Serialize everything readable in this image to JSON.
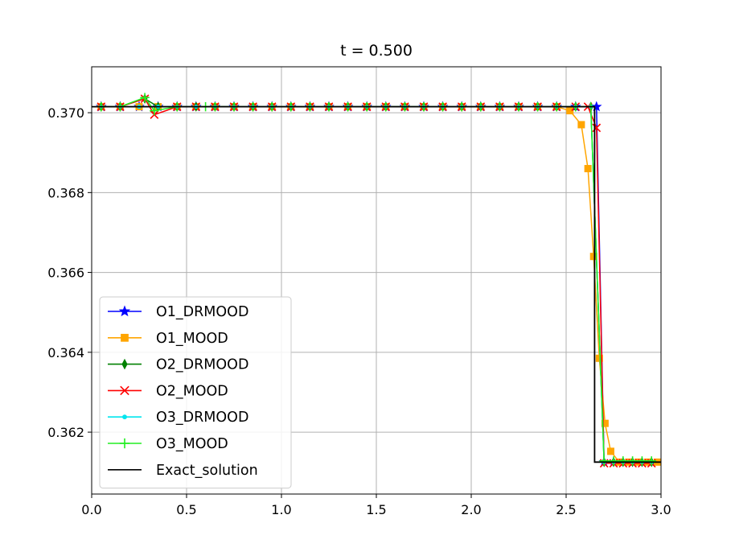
{
  "chart_data": {
    "type": "line",
    "title": "t = 0.500",
    "xlabel": "",
    "ylabel": "",
    "xlim": [
      0.0,
      3.0
    ],
    "ylim": [
      0.36045,
      0.37115
    ],
    "xticks": [
      "0.0",
      "0.5",
      "1.0",
      "1.5",
      "2.0",
      "2.5",
      "3.0"
    ],
    "yticks": [
      "0.362",
      "0.364",
      "0.366",
      "0.368",
      "0.370"
    ],
    "grid": true,
    "legend_position": "lower left",
    "shock_x": 2.65,
    "left_state": 0.37015,
    "right_state": 0.36125,
    "series": [
      {
        "name": "O1_DRMOOD",
        "color": "#0000ff",
        "marker": "star",
        "x": [
          0.05,
          0.15,
          0.25,
          0.35,
          0.45,
          0.55,
          0.65,
          0.75,
          0.85,
          0.95,
          1.05,
          1.15,
          1.25,
          1.35,
          1.45,
          1.55,
          1.65,
          1.75,
          1.85,
          1.95,
          2.05,
          2.15,
          2.25,
          2.35,
          2.45,
          2.55,
          2.66,
          2.7,
          2.75,
          2.8,
          2.85,
          2.9,
          2.95
        ],
        "y": [
          0.37015,
          0.37015,
          0.37015,
          0.37015,
          0.37015,
          0.37015,
          0.37015,
          0.37015,
          0.37015,
          0.37015,
          0.37015,
          0.37015,
          0.37015,
          0.37015,
          0.37015,
          0.37015,
          0.37015,
          0.37015,
          0.37015,
          0.37015,
          0.37015,
          0.37015,
          0.37015,
          0.37015,
          0.37015,
          0.37015,
          0.37015,
          0.36125,
          0.36125,
          0.36125,
          0.36125,
          0.36125,
          0.36125
        ]
      },
      {
        "name": "O1_MOOD",
        "color": "#ffa500",
        "marker": "square",
        "x": [
          0.05,
          0.15,
          0.25,
          0.35,
          0.45,
          0.55,
          0.65,
          0.75,
          0.85,
          0.95,
          1.05,
          1.15,
          1.25,
          1.35,
          1.45,
          1.55,
          1.65,
          1.75,
          1.85,
          1.95,
          2.05,
          2.15,
          2.25,
          2.35,
          2.45,
          2.52,
          2.58,
          2.615,
          2.645,
          2.675,
          2.705,
          2.735,
          2.78,
          2.83,
          2.88,
          2.93,
          2.98
        ],
        "y": [
          0.37015,
          0.37015,
          0.37015,
          0.37015,
          0.37015,
          0.37015,
          0.37015,
          0.37015,
          0.37015,
          0.37015,
          0.37015,
          0.37015,
          0.37015,
          0.37015,
          0.37015,
          0.37015,
          0.37015,
          0.37015,
          0.37015,
          0.37015,
          0.37015,
          0.37015,
          0.37015,
          0.37015,
          0.37015,
          0.37005,
          0.3697,
          0.3686,
          0.3664,
          0.36385,
          0.36222,
          0.36152,
          0.36125,
          0.36125,
          0.36125,
          0.36125,
          0.36125
        ]
      },
      {
        "name": "O2_DRMOOD",
        "color": "#008000",
        "marker": "thin_diamond",
        "x": [
          0.05,
          0.15,
          0.28,
          0.35,
          0.45,
          0.55,
          0.65,
          0.75,
          0.85,
          0.95,
          1.05,
          1.15,
          1.25,
          1.35,
          1.45,
          1.55,
          1.65,
          1.75,
          1.85,
          1.95,
          2.05,
          2.15,
          2.25,
          2.35,
          2.45,
          2.55,
          2.63,
          2.7,
          2.75,
          2.8,
          2.85,
          2.9,
          2.95
        ],
        "y": [
          0.37015,
          0.37015,
          0.37035,
          0.37015,
          0.37015,
          0.37015,
          0.37015,
          0.37015,
          0.37015,
          0.37015,
          0.37015,
          0.37015,
          0.37015,
          0.37015,
          0.37015,
          0.37015,
          0.37015,
          0.37015,
          0.37015,
          0.37015,
          0.37015,
          0.37015,
          0.37015,
          0.37015,
          0.37015,
          0.37015,
          0.37015,
          0.36125,
          0.36125,
          0.36125,
          0.36125,
          0.36125,
          0.36125
        ]
      },
      {
        "name": "O2_MOOD",
        "color": "#ff0000",
        "marker": "x",
        "x": [
          0.05,
          0.15,
          0.28,
          0.33,
          0.45,
          0.55,
          0.65,
          0.75,
          0.85,
          0.95,
          1.05,
          1.15,
          1.25,
          1.35,
          1.45,
          1.55,
          1.65,
          1.75,
          1.85,
          1.95,
          2.05,
          2.15,
          2.25,
          2.35,
          2.45,
          2.55,
          2.615,
          2.66,
          2.7,
          2.75,
          2.8,
          2.85,
          2.9,
          2.95
        ],
        "y": [
          0.37015,
          0.37015,
          0.37035,
          0.36995,
          0.37015,
          0.37015,
          0.37015,
          0.37015,
          0.37015,
          0.37015,
          0.37015,
          0.37015,
          0.37015,
          0.37015,
          0.37015,
          0.37015,
          0.37015,
          0.37015,
          0.37015,
          0.37015,
          0.37015,
          0.37015,
          0.37015,
          0.37015,
          0.37015,
          0.37015,
          0.37015,
          0.36962,
          0.36122,
          0.36122,
          0.36122,
          0.36122,
          0.36122,
          0.36122
        ]
      },
      {
        "name": "O3_DRMOOD",
        "color": "#00e5ee",
        "marker": "point",
        "x": [
          0.05,
          0.15,
          0.25,
          0.35,
          0.45,
          0.55,
          0.65,
          0.75,
          0.85,
          0.95,
          1.05,
          1.15,
          1.25,
          1.35,
          1.45,
          1.55,
          1.65,
          1.75,
          1.85,
          1.95,
          2.05,
          2.15,
          2.25,
          2.35,
          2.45,
          2.55,
          2.63,
          2.7,
          2.75,
          2.8,
          2.85,
          2.9,
          2.95
        ],
        "y": [
          0.37015,
          0.37015,
          0.37015,
          0.37015,
          0.37015,
          0.37015,
          0.37015,
          0.37015,
          0.37015,
          0.37015,
          0.37015,
          0.37015,
          0.37015,
          0.37015,
          0.37015,
          0.37015,
          0.37015,
          0.37015,
          0.37015,
          0.37015,
          0.37015,
          0.37015,
          0.37015,
          0.37015,
          0.37015,
          0.37015,
          0.37015,
          0.36125,
          0.36125,
          0.36125,
          0.36125,
          0.36125,
          0.36125
        ]
      },
      {
        "name": "O3_MOOD",
        "color": "#22ee22",
        "marker": "plus",
        "x": [
          0.05,
          0.15,
          0.28,
          0.33,
          0.45,
          0.6,
          0.65,
          0.75,
          0.85,
          0.95,
          1.05,
          1.15,
          1.25,
          1.35,
          1.45,
          1.55,
          1.65,
          1.75,
          1.85,
          1.95,
          2.05,
          2.15,
          2.25,
          2.35,
          2.45,
          2.55,
          2.63,
          2.7,
          2.75,
          2.8,
          2.85,
          2.9,
          2.95
        ],
        "y": [
          0.37015,
          0.37015,
          0.37038,
          0.37005,
          0.37015,
          0.37015,
          0.37015,
          0.37015,
          0.37015,
          0.37015,
          0.37015,
          0.37015,
          0.37015,
          0.37015,
          0.37015,
          0.37015,
          0.37015,
          0.37015,
          0.37015,
          0.37015,
          0.37015,
          0.37015,
          0.37015,
          0.37015,
          0.37015,
          0.37015,
          0.37015,
          0.36128,
          0.36128,
          0.36128,
          0.36128,
          0.36128,
          0.36128
        ]
      },
      {
        "name": "Exact_solution",
        "color": "#000000",
        "marker": "none",
        "x": [
          0.0,
          2.65,
          2.65,
          3.0
        ],
        "y": [
          0.37015,
          0.37015,
          0.36125,
          0.36125
        ]
      }
    ]
  }
}
